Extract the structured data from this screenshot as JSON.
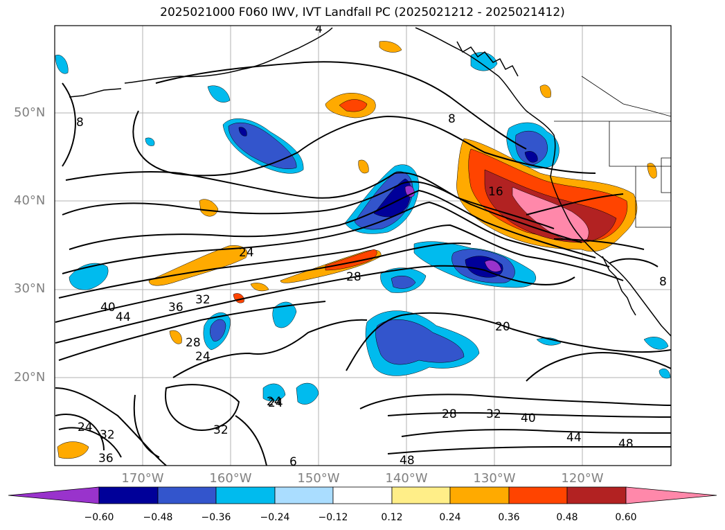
{
  "title": "2025021000 F060 IWV, IVT Landfall PC (2025021212 - 2025021412)",
  "axes": {
    "lat_labels": [
      "50°N",
      "40°N",
      "30°N",
      "20°N"
    ],
    "lon_labels": [
      "170°W",
      "160°W",
      "150°W",
      "140°W",
      "130°W",
      "120°W"
    ]
  },
  "colorbar": {
    "ticks": [
      "−0.60",
      "−0.48",
      "−0.36",
      "−0.24",
      "−0.12",
      "0.12",
      "0.24",
      "0.36",
      "0.48",
      "0.60"
    ],
    "colors": [
      "#9933cc",
      "#000099",
      "#3355cc",
      "#00bbee",
      "#aaddff",
      "#ffffff",
      "#ffee88",
      "#ffaa00",
      "#ff4400",
      "#b22222",
      "#ff88aa"
    ]
  },
  "contour_labels": [
    "8",
    "8",
    "16",
    "24",
    "28",
    "32",
    "36",
    "40",
    "44",
    "24",
    "28",
    "24",
    "20",
    "28",
    "32",
    "40",
    "44",
    "48",
    "24",
    "32",
    "36",
    "32",
    "24",
    "48",
    "8",
    "4",
    "6"
  ]
}
